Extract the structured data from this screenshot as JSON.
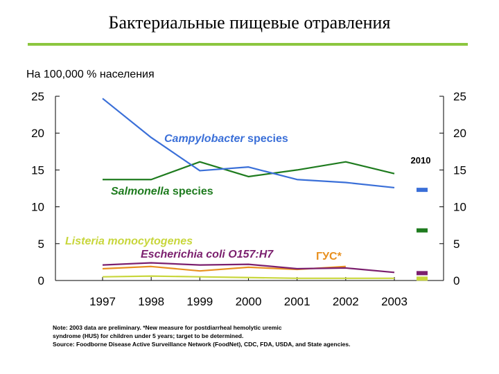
{
  "header": {
    "title": "Бактериальные пищевые отравления",
    "unit_label": "На 100,000 % населения"
  },
  "chart_data": {
    "type": "line",
    "x": [
      1997,
      1998,
      1999,
      2000,
      2001,
      2002,
      2003
    ],
    "ylim": [
      0,
      25
    ],
    "yticks": [
      0,
      5,
      10,
      15,
      20,
      25
    ],
    "grid": false,
    "series": [
      {
        "id": "campylobacter",
        "label_italic": "Campylobacter",
        "label_rest": " species",
        "color": "#3a6fd8",
        "values": [
          24.7,
          19.4,
          14.9,
          15.4,
          13.7,
          13.3,
          12.6
        ]
      },
      {
        "id": "salmonella",
        "label_italic": "Salmonella",
        "label_rest": " species",
        "color": "#1e7b1e",
        "values": [
          13.7,
          13.7,
          16.1,
          14.1,
          15.0,
          16.1,
          14.5
        ]
      },
      {
        "id": "listeria",
        "label_italic": "Listeria monocytogenes",
        "label_rest": "",
        "color": "#c8d63c",
        "values": [
          0.5,
          0.6,
          0.5,
          0.4,
          0.3,
          0.3,
          0.3
        ]
      },
      {
        "id": "ecoli",
        "label_italic": "Escherichia coli O157:H7",
        "label_rest": "",
        "color": "#7b1f6e",
        "values": [
          2.1,
          2.4,
          2.1,
          2.2,
          1.6,
          1.7,
          1.1
        ]
      },
      {
        "id": "hus",
        "label_italic": "",
        "label_rest": "ГУС*",
        "color": "#e89020",
        "values": [
          1.6,
          1.9,
          1.3,
          1.8,
          1.5,
          1.9,
          null
        ]
      }
    ],
    "targets": {
      "label": "2010",
      "markers": [
        {
          "series": "campylobacter",
          "value": 12.3
        },
        {
          "series": "salmonella",
          "value": 6.8
        },
        {
          "series": "ecoli",
          "value": 1.0
        },
        {
          "series": "listeria",
          "value": 0.25
        }
      ]
    }
  },
  "notes": [
    "Note: 2003 data are preliminary. *New measure for postdiarrheal hemolytic uremic",
    "syndrome (HUS) for children under 5 years; target to be determined.",
    "Source: Foodborne Disease Active Surveillance Network (FoodNet), CDC, FDA, USDA, and State agencies."
  ]
}
